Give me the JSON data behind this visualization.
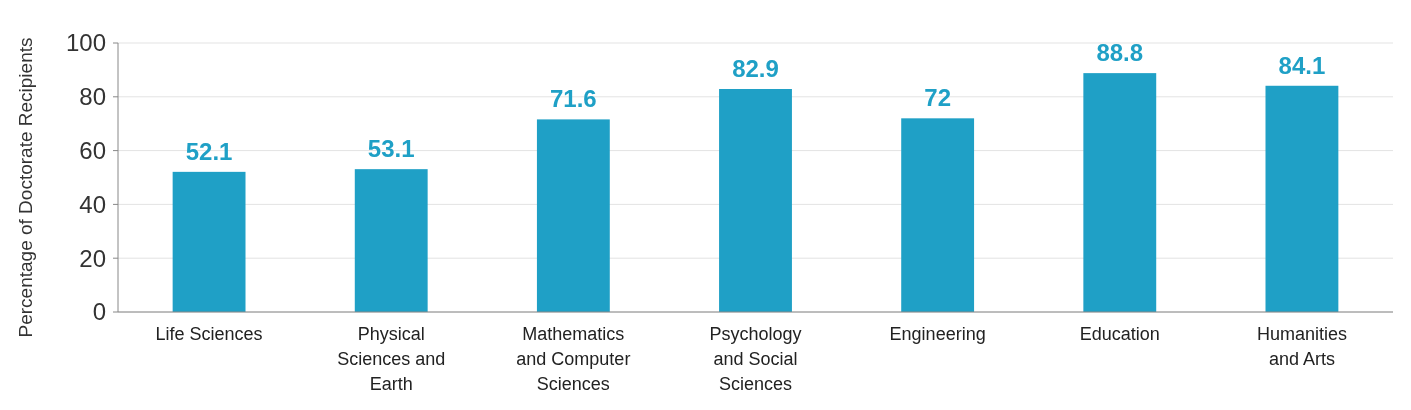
{
  "chart_data": {
    "type": "bar",
    "ylabel": "Percentage of Doctorate Recipients",
    "categories": [
      "Life Sciences",
      "Physical Sciences and Earth Sciences",
      "Mathematics and Computer Sciences",
      "Psychology and Social Sciences",
      "Engineering",
      "Education",
      "Humanities and Arts"
    ],
    "values": [
      52.1,
      53.1,
      71.6,
      82.9,
      72,
      88.8,
      84.1
    ],
    "color": "#1fa0c6",
    "ylim": [
      0,
      100
    ],
    "yticks": [
      0,
      20,
      40,
      60,
      80,
      100
    ],
    "grid": "y",
    "data_labels": true
  }
}
